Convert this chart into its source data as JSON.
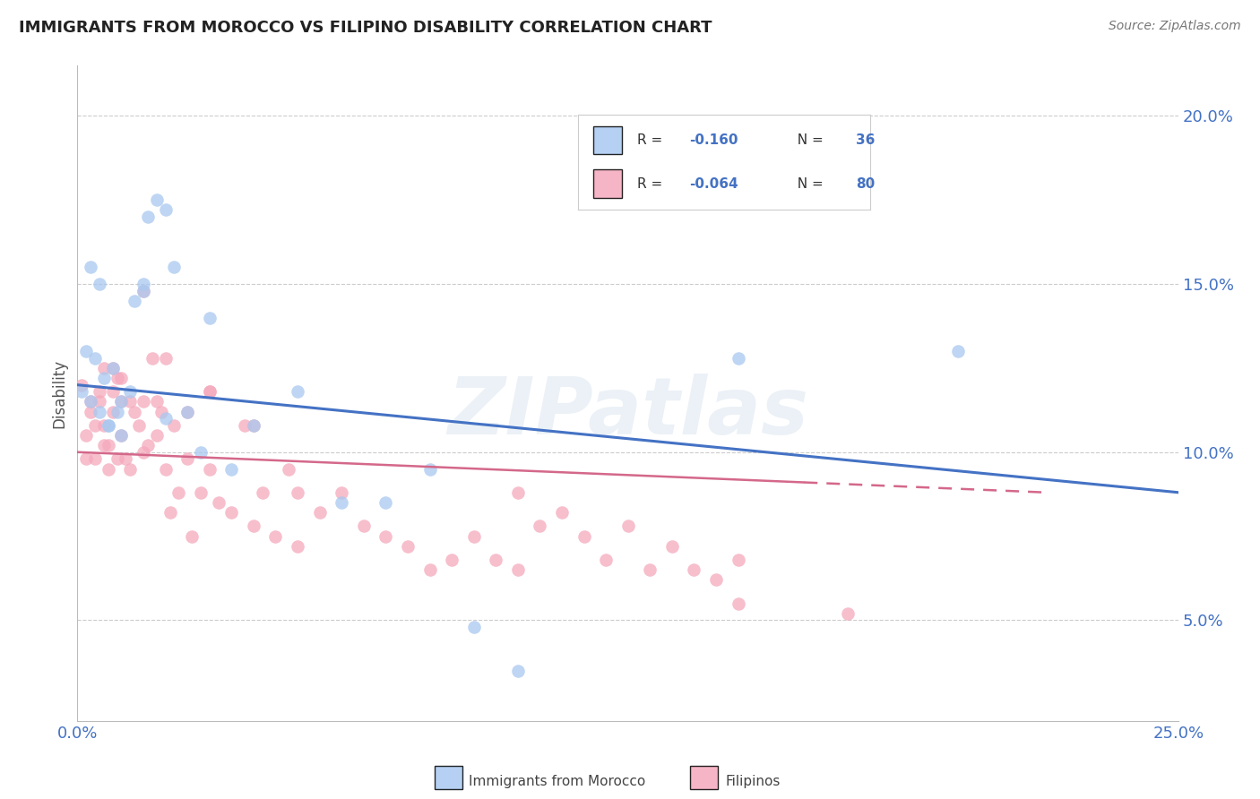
{
  "title": "IMMIGRANTS FROM MOROCCO VS FILIPINO DISABILITY CORRELATION CHART",
  "source": "Source: ZipAtlas.com",
  "ylabel": "Disability",
  "xlim": [
    0.0,
    0.25
  ],
  "ylim": [
    0.02,
    0.215
  ],
  "yticks": [
    0.05,
    0.1,
    0.15,
    0.2
  ],
  "ytick_labels": [
    "5.0%",
    "10.0%",
    "15.0%",
    "20.0%"
  ],
  "xticks": [
    0.0,
    0.05,
    0.1,
    0.15,
    0.2,
    0.25
  ],
  "xtick_labels": [
    "0.0%",
    "",
    "",
    "",
    "",
    "25.0%"
  ],
  "watermark": "ZIPatlas",
  "morocco_color": "#A8C8F0",
  "filipino_color": "#F5A8BC",
  "morocco_line_color": "#4472C4",
  "filipino_line_color": "#D4688A",
  "background_color": "#FFFFFF",
  "grid_color": "#CCCCCC",
  "axis_color": "#4472C4",
  "watermark_color": "#C8D8E8",
  "watermark_alpha": 0.35,
  "legend_r1": "-0.160",
  "legend_n1": "36",
  "legend_r2": "-0.064",
  "legend_n2": "80",
  "morocco_x": [
    0.001,
    0.002,
    0.003,
    0.004,
    0.005,
    0.006,
    0.007,
    0.008,
    0.009,
    0.01,
    0.012,
    0.013,
    0.015,
    0.016,
    0.018,
    0.02,
    0.022,
    0.025,
    0.028,
    0.03,
    0.035,
    0.04,
    0.05,
    0.06,
    0.07,
    0.08,
    0.09,
    0.1,
    0.15,
    0.003,
    0.005,
    0.007,
    0.01,
    0.015,
    0.02,
    0.2
  ],
  "morocco_y": [
    0.118,
    0.13,
    0.115,
    0.128,
    0.112,
    0.122,
    0.108,
    0.125,
    0.112,
    0.105,
    0.118,
    0.145,
    0.148,
    0.17,
    0.175,
    0.172,
    0.155,
    0.112,
    0.1,
    0.14,
    0.095,
    0.108,
    0.118,
    0.085,
    0.085,
    0.095,
    0.048,
    0.035,
    0.128,
    0.155,
    0.15,
    0.108,
    0.115,
    0.15,
    0.11,
    0.13
  ],
  "filipino_x": [
    0.001,
    0.002,
    0.003,
    0.004,
    0.005,
    0.006,
    0.006,
    0.007,
    0.008,
    0.008,
    0.009,
    0.01,
    0.01,
    0.011,
    0.012,
    0.013,
    0.014,
    0.015,
    0.015,
    0.016,
    0.017,
    0.018,
    0.019,
    0.02,
    0.021,
    0.022,
    0.023,
    0.025,
    0.026,
    0.028,
    0.03,
    0.03,
    0.032,
    0.035,
    0.038,
    0.04,
    0.042,
    0.045,
    0.048,
    0.05,
    0.055,
    0.06,
    0.065,
    0.07,
    0.075,
    0.08,
    0.085,
    0.09,
    0.095,
    0.1,
    0.105,
    0.11,
    0.115,
    0.12,
    0.125,
    0.13,
    0.135,
    0.14,
    0.145,
    0.15,
    0.002,
    0.003,
    0.004,
    0.005,
    0.006,
    0.007,
    0.008,
    0.009,
    0.01,
    0.012,
    0.015,
    0.018,
    0.02,
    0.025,
    0.03,
    0.04,
    0.05,
    0.1,
    0.15,
    0.175
  ],
  "filipino_y": [
    0.12,
    0.105,
    0.112,
    0.098,
    0.115,
    0.108,
    0.102,
    0.095,
    0.125,
    0.118,
    0.122,
    0.115,
    0.105,
    0.098,
    0.095,
    0.112,
    0.108,
    0.1,
    0.115,
    0.102,
    0.128,
    0.105,
    0.112,
    0.095,
    0.082,
    0.108,
    0.088,
    0.098,
    0.075,
    0.088,
    0.118,
    0.095,
    0.085,
    0.082,
    0.108,
    0.078,
    0.088,
    0.075,
    0.095,
    0.072,
    0.082,
    0.088,
    0.078,
    0.075,
    0.072,
    0.065,
    0.068,
    0.075,
    0.068,
    0.065,
    0.078,
    0.082,
    0.075,
    0.068,
    0.078,
    0.065,
    0.072,
    0.065,
    0.062,
    0.068,
    0.098,
    0.115,
    0.108,
    0.118,
    0.125,
    0.102,
    0.112,
    0.098,
    0.122,
    0.115,
    0.148,
    0.115,
    0.128,
    0.112,
    0.118,
    0.108,
    0.088,
    0.088,
    0.055,
    0.052
  ],
  "morocco_line_x0": 0.0,
  "morocco_line_y0": 0.12,
  "morocco_line_x1": 0.25,
  "morocco_line_y1": 0.088,
  "filipino_line_x0": 0.0,
  "filipino_line_y0": 0.1,
  "filipino_line_x1": 0.22,
  "filipino_line_y1": 0.088
}
